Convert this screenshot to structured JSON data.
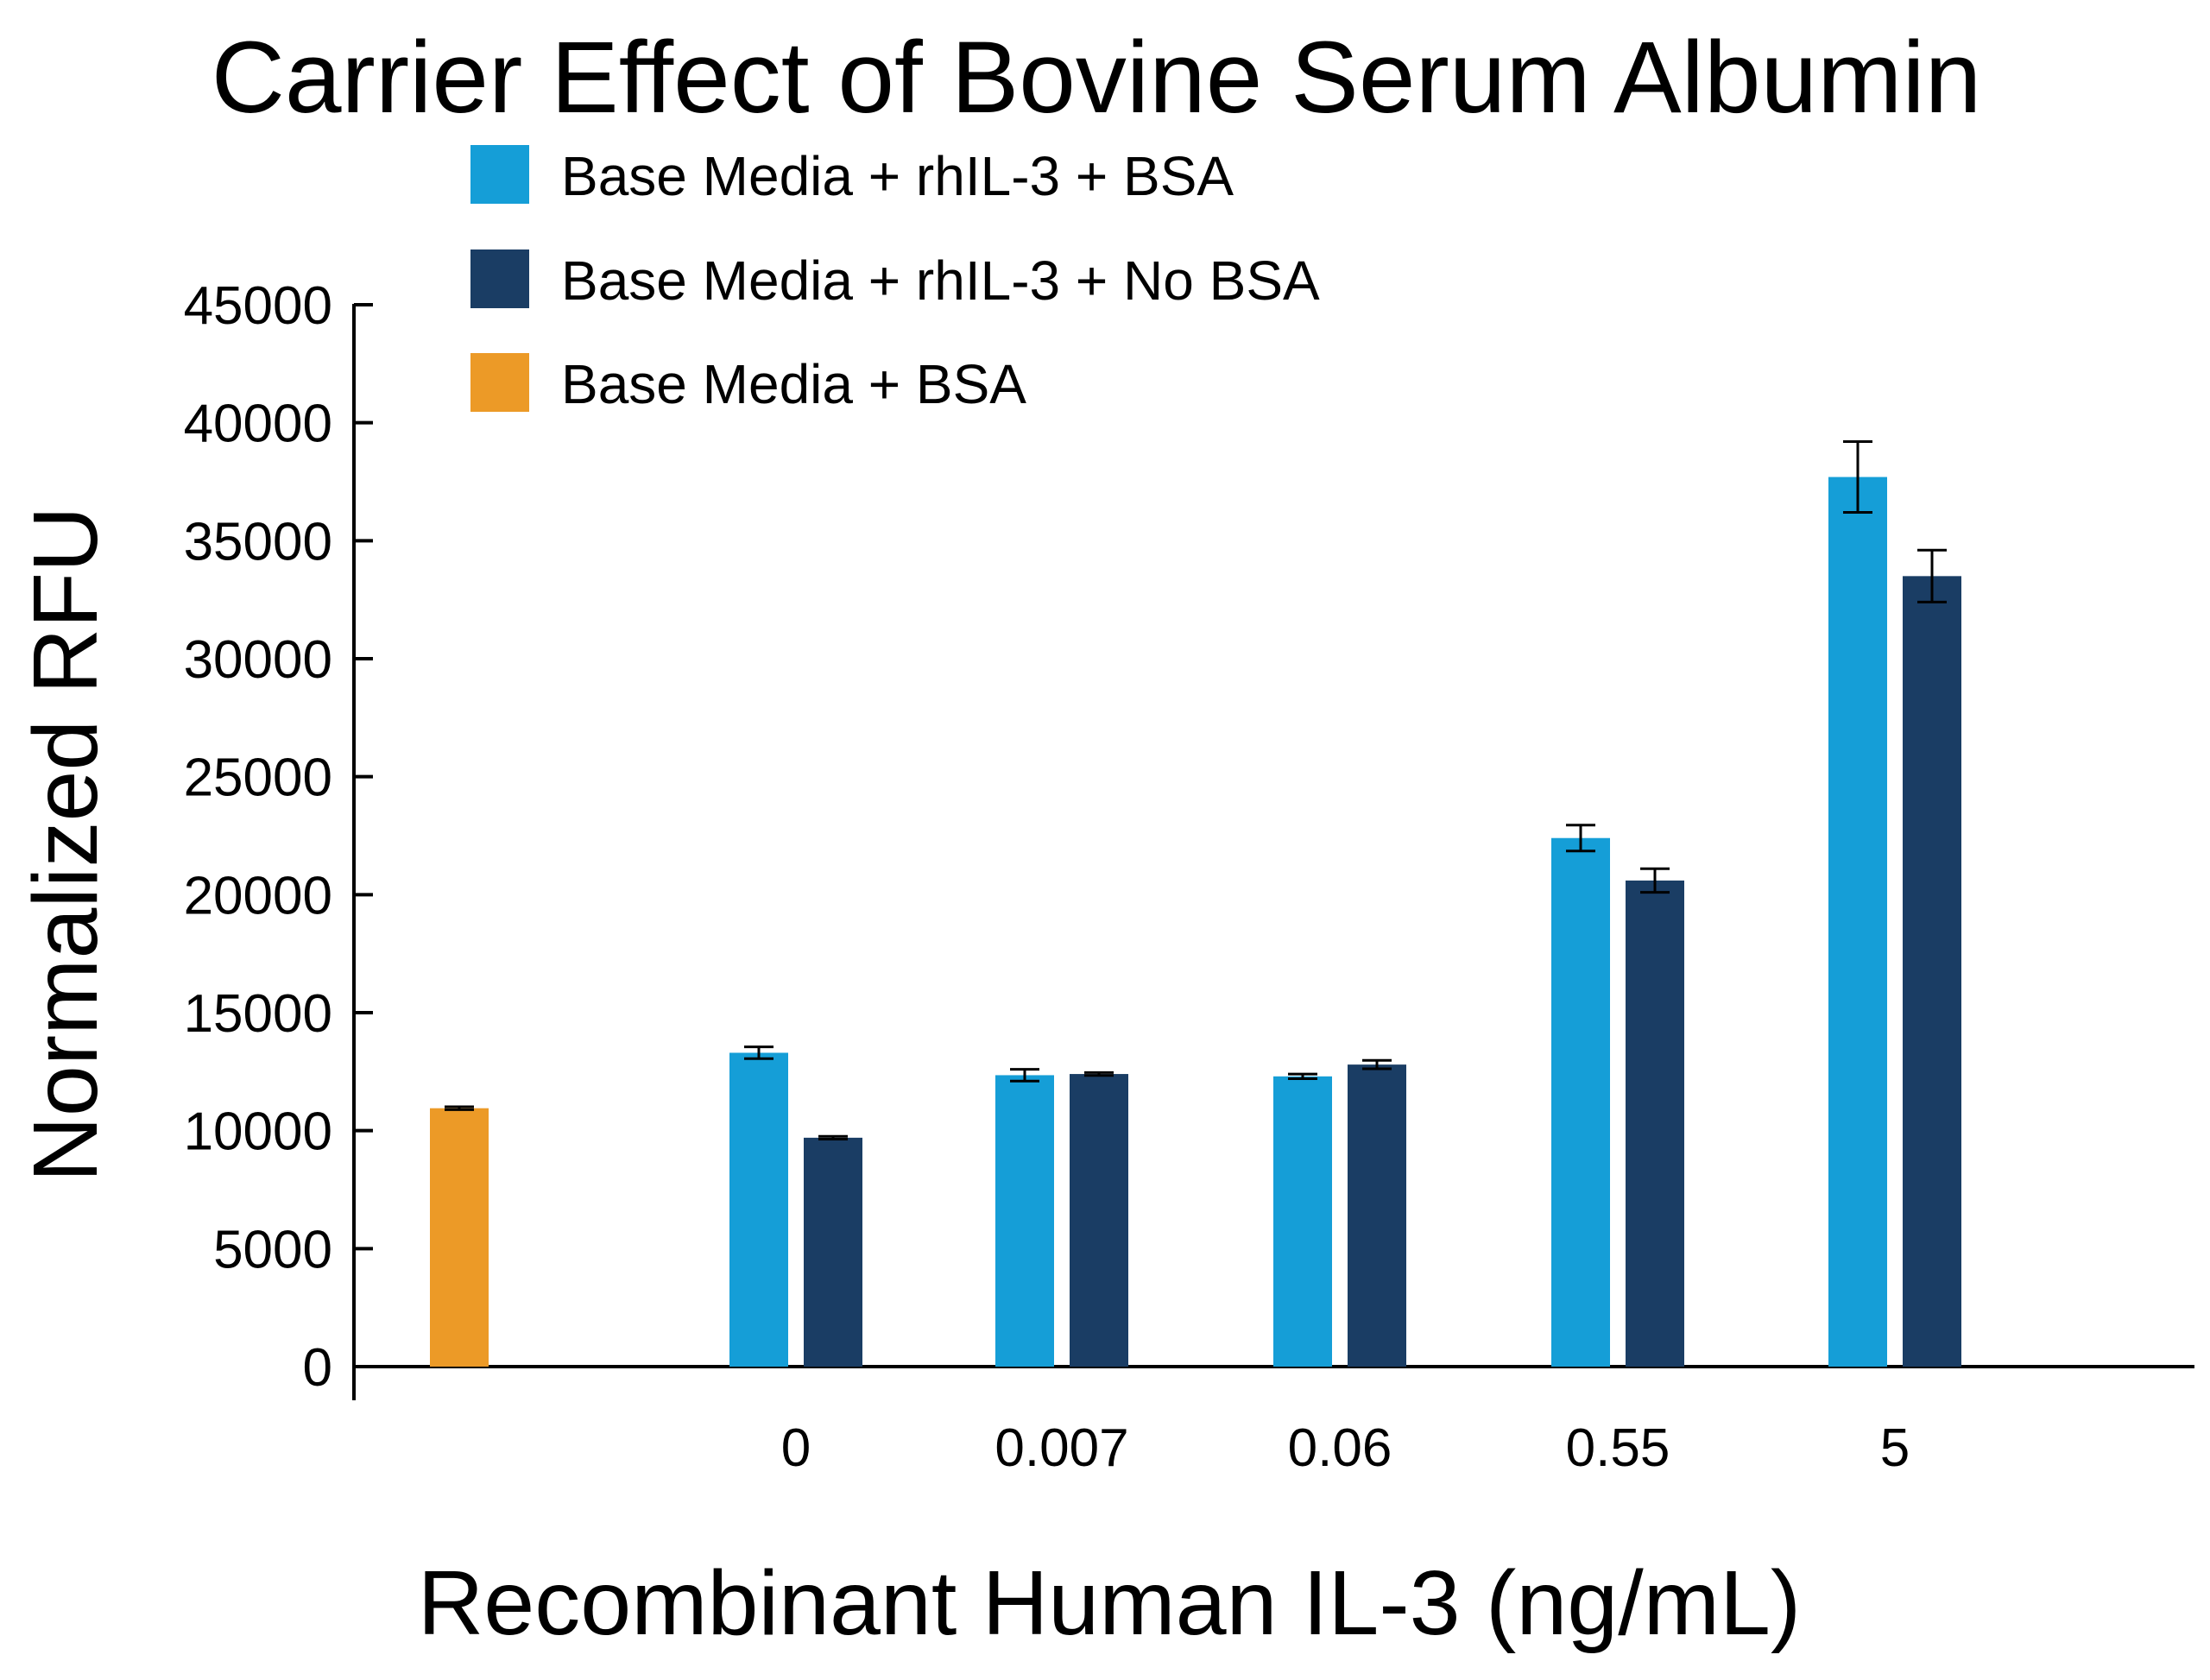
{
  "chart_data": {
    "type": "bar",
    "title": "Carrier Effect of Bovine Serum Albumin",
    "xlabel": "Recombinant Human IL-3 (ng/mL)",
    "ylabel": "Normalized RFU",
    "ylim": [
      0,
      45000
    ],
    "yticks": [
      "0",
      "5000",
      "10000",
      "15000",
      "20000",
      "25000",
      "30000",
      "35000",
      "40000",
      "45000"
    ],
    "grid": false,
    "legend_position": "top-left",
    "categories": [
      "",
      "0",
      "0.007",
      "0.06",
      "0.55",
      "5"
    ],
    "series": [
      {
        "name": "Base Media + rhIL-3 + BSA",
        "color": "#159ed7",
        "values": [
          null,
          13300,
          12350,
          12300,
          22400,
          37700
        ],
        "errors": [
          null,
          250,
          250,
          100,
          550,
          1500
        ]
      },
      {
        "name": "Base Media + rhIL-3 + No BSA",
        "color": "#1a3d64",
        "values": [
          null,
          9700,
          12400,
          12800,
          20600,
          33500
        ],
        "errors": [
          null,
          60,
          60,
          180,
          500,
          1100
        ]
      },
      {
        "name": "Base Media + BSA",
        "color": "#ec9a27",
        "values": [
          10950,
          null,
          null,
          null,
          null,
          null
        ],
        "errors": [
          60,
          null,
          null,
          null,
          null,
          null
        ]
      }
    ]
  }
}
